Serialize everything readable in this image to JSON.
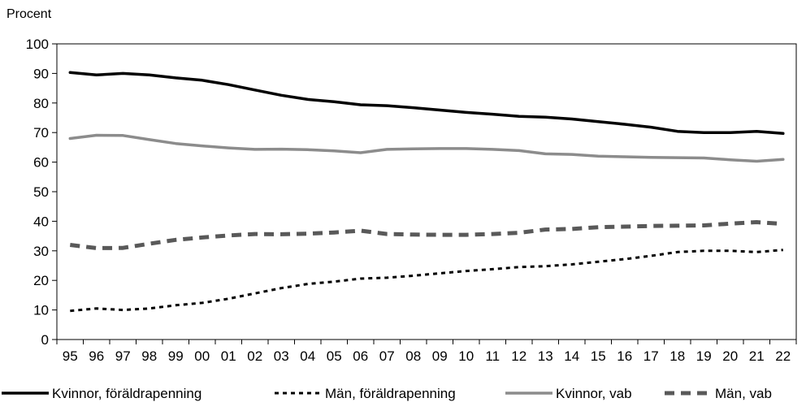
{
  "chart_data": {
    "type": "line",
    "ylabel": "Procent",
    "ylim": [
      0,
      100
    ],
    "yticks": [
      0,
      10,
      20,
      30,
      40,
      50,
      60,
      70,
      80,
      90,
      100
    ],
    "categories": [
      "95",
      "96",
      "97",
      "98",
      "99",
      "00",
      "01",
      "02",
      "03",
      "04",
      "05",
      "06",
      "07",
      "08",
      "09",
      "10",
      "11",
      "12",
      "13",
      "14",
      "15",
      "16",
      "17",
      "18",
      "19",
      "20",
      "21",
      "22"
    ],
    "grid": false,
    "legend_position": "bottom",
    "series": [
      {
        "name": "Kvinnor, föräldrapenning",
        "color": "#000000",
        "style": "solid",
        "values": [
          90.3,
          89.5,
          90,
          89.5,
          88.5,
          87.7,
          86.2,
          84.4,
          82.6,
          81.2,
          80.4,
          79.4,
          79.1,
          78.4,
          77.6,
          76.8,
          76.2,
          75.5,
          75.2,
          74.6,
          73.7,
          72.8,
          71.8,
          70.4,
          70.0,
          70.0,
          70.4,
          69.7
        ]
      },
      {
        "name": "Män, föräldrapenning",
        "color": "#000000",
        "style": "dotted",
        "values": [
          9.7,
          10.5,
          10.0,
          10.5,
          11.6,
          12.4,
          13.8,
          15.6,
          17.4,
          18.8,
          19.6,
          20.6,
          20.9,
          21.6,
          22.4,
          23.2,
          23.8,
          24.5,
          24.8,
          25.4,
          26.3,
          27.2,
          28.3,
          29.6,
          30.0,
          30.0,
          29.6,
          30.3
        ]
      },
      {
        "name": "Kvinnor, vab",
        "color": "#8c8c8c",
        "style": "solid",
        "values": [
          68.0,
          69.1,
          69.0,
          67.6,
          66.3,
          65.5,
          64.8,
          64.3,
          64.4,
          64.2,
          63.8,
          63.2,
          64.3,
          64.5,
          64.6,
          64.6,
          64.3,
          63.9,
          62.8,
          62.6,
          62.0,
          61.8,
          61.6,
          61.5,
          61.4,
          60.8,
          60.3,
          60.9
        ]
      },
      {
        "name": "Män, vab",
        "color": "#595959",
        "style": "dashed",
        "values": [
          32.0,
          30.9,
          31.0,
          32.4,
          33.7,
          34.5,
          35.2,
          35.7,
          35.6,
          35.8,
          36.2,
          36.8,
          35.7,
          35.5,
          35.4,
          35.4,
          35.7,
          36.1,
          37.2,
          37.4,
          38.0,
          38.2,
          38.4,
          38.5,
          38.6,
          39.2,
          39.7,
          39.1
        ]
      }
    ]
  }
}
